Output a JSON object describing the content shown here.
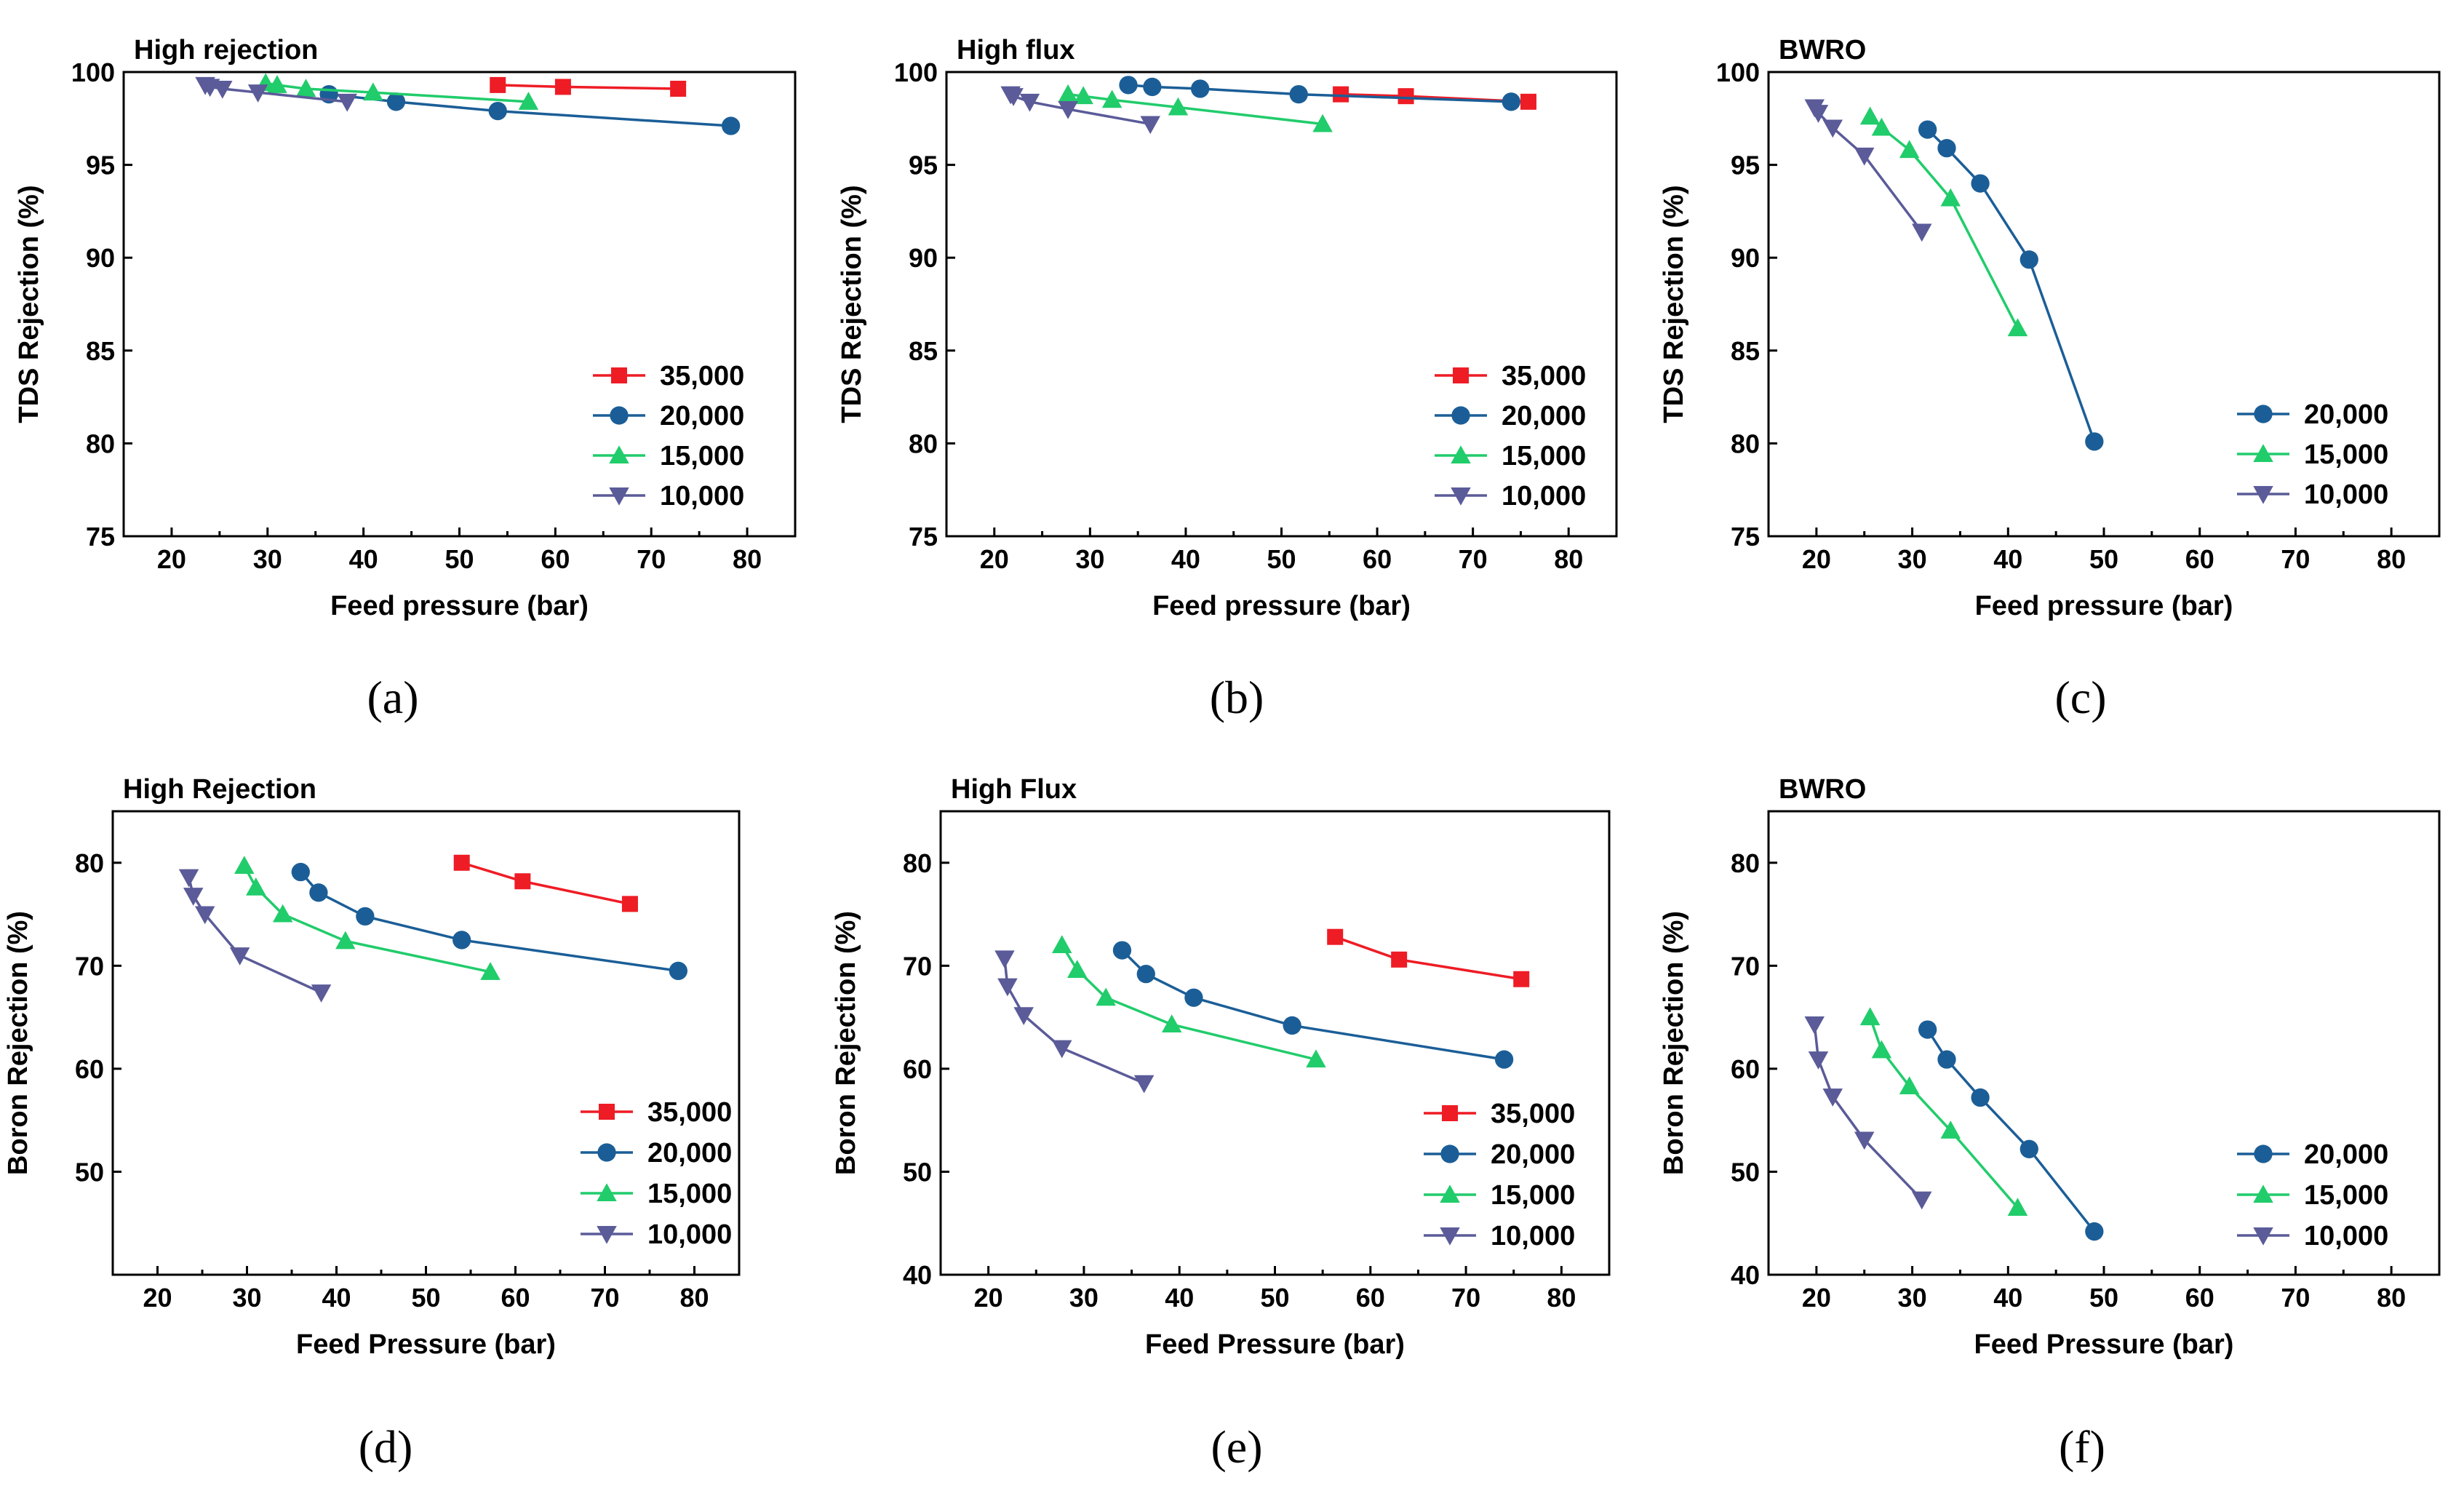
{
  "chart_data": [
    {
      "type": "line",
      "panel_label": "(a)",
      "title": "High rejection",
      "xlabel": "Feed pressure (bar)",
      "ylabel": "TDS Rejection (%)",
      "xlim": [
        15,
        85
      ],
      "ylim": [
        75,
        100
      ],
      "xticks": [
        20,
        30,
        40,
        50,
        60,
        70,
        80
      ],
      "yticks": [
        75,
        80,
        85,
        90,
        95,
        100
      ],
      "legend_position": "bottom-right",
      "series": [
        {
          "name": "35,000",
          "color": "#ee1c25",
          "marker": "square",
          "x": [
            54,
            60.8,
            72.8
          ],
          "y": [
            99.3,
            99.2,
            99.1
          ]
        },
        {
          "name": "20,000",
          "color": "#1b5e97",
          "marker": "circle",
          "x": [
            36.4,
            43.4,
            54,
            78.3
          ],
          "y": [
            98.8,
            98.4,
            97.9,
            97.1
          ]
        },
        {
          "name": "15,000",
          "color": "#21cc6b",
          "marker": "triangle-up",
          "x": [
            29.8,
            31,
            34,
            41,
            57.2
          ],
          "y": [
            99.4,
            99.3,
            99.1,
            98.9,
            98.4
          ]
        },
        {
          "name": "10,000",
          "color": "#5b5b99",
          "marker": "triangle-down",
          "x": [
            23.5,
            24,
            25.3,
            29,
            38.3
          ],
          "y": [
            99.3,
            99.2,
            99.1,
            98.9,
            98.4
          ]
        }
      ]
    },
    {
      "type": "line",
      "panel_label": "(b)",
      "title": "High flux",
      "xlabel": "Feed pressure (bar)",
      "ylabel": "TDS Rejection (%)",
      "xlim": [
        15,
        85
      ],
      "ylim": [
        75,
        100
      ],
      "xticks": [
        20,
        30,
        40,
        50,
        60,
        70,
        80
      ],
      "yticks": [
        75,
        80,
        85,
        90,
        95,
        100
      ],
      "legend_position": "bottom-right",
      "series": [
        {
          "name": "35,000",
          "color": "#ee1c25",
          "marker": "square",
          "x": [
            56.2,
            63,
            75.8
          ],
          "y": [
            98.8,
            98.7,
            98.4
          ]
        },
        {
          "name": "20,000",
          "color": "#1b5e97",
          "marker": "circle",
          "x": [
            34,
            36.5,
            41.5,
            51.8,
            74
          ],
          "y": [
            99.3,
            99.2,
            99.1,
            98.8,
            98.4
          ]
        },
        {
          "name": "15,000",
          "color": "#21cc6b",
          "marker": "triangle-up",
          "x": [
            27.7,
            29.3,
            32.3,
            39.2,
            54.3
          ],
          "y": [
            98.8,
            98.7,
            98.5,
            98.1,
            97.2
          ]
        },
        {
          "name": "10,000",
          "color": "#5b5b99",
          "marker": "triangle-down",
          "x": [
            21.7,
            22,
            23.7,
            27.7,
            36.3
          ],
          "y": [
            98.8,
            98.7,
            98.4,
            98.0,
            97.2
          ]
        }
      ]
    },
    {
      "type": "line",
      "panel_label": "(c)",
      "title": "BWRO",
      "xlabel": "Feed pressure (bar)",
      "ylabel": "TDS Rejection (%)",
      "xlim": [
        15,
        85
      ],
      "ylim": [
        75,
        100
      ],
      "xticks": [
        20,
        30,
        40,
        50,
        60,
        70,
        80
      ],
      "yticks": [
        75,
        80,
        85,
        90,
        95,
        100
      ],
      "legend_position": "bottom-right",
      "series": [
        {
          "name": "20,000",
          "color": "#1b5e97",
          "marker": "circle",
          "x": [
            31.6,
            33.6,
            37.1,
            42.2,
            49
          ],
          "y": [
            96.9,
            95.9,
            94.0,
            89.9,
            80.1
          ]
        },
        {
          "name": "15,000",
          "color": "#21cc6b",
          "marker": "triangle-up",
          "x": [
            25.6,
            26.8,
            29.7,
            34,
            41
          ],
          "y": [
            97.6,
            97.0,
            95.8,
            93.2,
            86.2
          ]
        },
        {
          "name": "10,000",
          "color": "#5b5b99",
          "marker": "triangle-down",
          "x": [
            19.8,
            20.2,
            21.7,
            25,
            31
          ],
          "y": [
            98.1,
            97.8,
            97.0,
            95.5,
            91.4
          ]
        }
      ]
    },
    {
      "type": "line",
      "panel_label": "(d)",
      "title": "High Rejection",
      "xlabel": "Feed Pressure (bar)",
      "ylabel": "Boron Rejection (%)",
      "xlim": [
        15,
        85
      ],
      "ylim": [
        40,
        85
      ],
      "xticks": [
        20,
        30,
        40,
        50,
        60,
        70,
        80
      ],
      "yticks": [
        50,
        60,
        70,
        80
      ],
      "legend_position": "bottom-right",
      "series": [
        {
          "name": "35,000",
          "color": "#ee1c25",
          "marker": "square",
          "x": [
            54,
            60.8,
            72.8
          ],
          "y": [
            80.0,
            78.2,
            76.0
          ]
        },
        {
          "name": "20,000",
          "color": "#1b5e97",
          "marker": "circle",
          "x": [
            36,
            38,
            43.2,
            54,
            78.2
          ],
          "y": [
            79.1,
            77.1,
            74.8,
            72.5,
            69.5
          ]
        },
        {
          "name": "15,000",
          "color": "#21cc6b",
          "marker": "triangle-up",
          "x": [
            29.7,
            31,
            34,
            41,
            57.2
          ],
          "y": [
            79.7,
            77.6,
            75.0,
            72.4,
            69.4
          ]
        },
        {
          "name": "10,000",
          "color": "#5b5b99",
          "marker": "triangle-down",
          "x": [
            23.5,
            24,
            25.3,
            29.2,
            38.3
          ],
          "y": [
            78.6,
            76.8,
            75.0,
            71.0,
            67.4
          ]
        }
      ]
    },
    {
      "type": "line",
      "panel_label": "(e)",
      "title": "High Flux",
      "xlabel": "Feed Pressure (bar)",
      "ylabel": "Boron Rejection (%)",
      "xlim": [
        15,
        85
      ],
      "ylim": [
        40,
        85
      ],
      "xticks": [
        20,
        30,
        40,
        50,
        60,
        70,
        80
      ],
      "yticks": [
        40,
        50,
        60,
        70,
        80
      ],
      "legend_position": "bottom-right",
      "series": [
        {
          "name": "35,000",
          "color": "#ee1c25",
          "marker": "square",
          "x": [
            56.3,
            63,
            75.8
          ],
          "y": [
            72.8,
            70.6,
            68.7
          ]
        },
        {
          "name": "20,000",
          "color": "#1b5e97",
          "marker": "circle",
          "x": [
            34,
            36.5,
            41.5,
            51.8,
            74
          ],
          "y": [
            71.5,
            69.2,
            66.9,
            64.2,
            60.9
          ]
        },
        {
          "name": "15,000",
          "color": "#21cc6b",
          "marker": "triangle-up",
          "x": [
            27.7,
            29.3,
            32.3,
            39.2,
            54.3
          ],
          "y": [
            72.0,
            69.6,
            66.9,
            64.3,
            60.9
          ]
        },
        {
          "name": "10,000",
          "color": "#5b5b99",
          "marker": "triangle-down",
          "x": [
            21.7,
            22,
            23.7,
            27.7,
            36.3
          ],
          "y": [
            70.7,
            68.0,
            65.2,
            62.0,
            58.6
          ]
        }
      ]
    },
    {
      "type": "line",
      "panel_label": "(f)",
      "title": "BWRO",
      "xlabel": "Feed Pressure (bar)",
      "ylabel": "Boron Rejection (%)",
      "xlim": [
        15,
        85
      ],
      "ylim": [
        40,
        85
      ],
      "xticks": [
        20,
        30,
        40,
        50,
        60,
        70,
        80
      ],
      "yticks": [
        40,
        50,
        60,
        70,
        80
      ],
      "legend_position": "bottom-right",
      "series": [
        {
          "name": "20,000",
          "color": "#1b5e97",
          "marker": "circle",
          "x": [
            31.6,
            33.6,
            37.1,
            42.2,
            49
          ],
          "y": [
            63.8,
            60.9,
            57.2,
            52.2,
            44.2
          ]
        },
        {
          "name": "15,000",
          "color": "#21cc6b",
          "marker": "triangle-up",
          "x": [
            25.6,
            26.8,
            29.7,
            34,
            41
          ],
          "y": [
            65.0,
            61.8,
            58.3,
            54.0,
            46.5
          ]
        },
        {
          "name": "10,000",
          "color": "#5b5b99",
          "marker": "triangle-down",
          "x": [
            19.8,
            20.2,
            21.7,
            25,
            31
          ],
          "y": [
            64.3,
            60.9,
            57.3,
            53.1,
            47.3
          ]
        }
      ]
    }
  ]
}
